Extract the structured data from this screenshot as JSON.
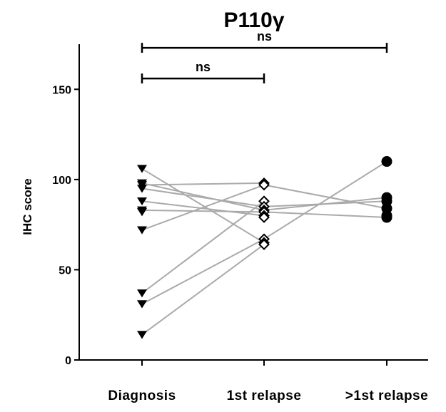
{
  "chart_data": {
    "type": "line",
    "title": "P110γ",
    "xlabel": "",
    "ylabel": "IHC score",
    "categories": [
      "Diagnosis",
      "1st relapse",
      ">1st relapse"
    ],
    "ylim": [
      0,
      175
    ],
    "yticks": [
      0,
      50,
      100,
      150
    ],
    "grid": false,
    "markers": [
      "triangle-down",
      "diamond-open",
      "circle"
    ],
    "line_color": "#aaaaaa",
    "marker_color": "#000000",
    "pairs": [
      {
        "from": [
          0,
          106
        ],
        "to": [
          1,
          65
        ]
      },
      {
        "from": [
          0,
          98
        ],
        "to": [
          1,
          83
        ]
      },
      {
        "from": [
          0,
          97
        ],
        "to": [
          1,
          98
        ]
      },
      {
        "from": [
          0,
          95
        ],
        "to": [
          1,
          85
        ]
      },
      {
        "from": [
          0,
          88
        ],
        "to": [
          1,
          80
        ]
      },
      {
        "from": [
          0,
          83
        ],
        "to": [
          1,
          82
        ]
      },
      {
        "from": [
          0,
          72
        ],
        "to": [
          1,
          97
        ]
      },
      {
        "from": [
          0,
          37
        ],
        "to": [
          1,
          88
        ]
      },
      {
        "from": [
          0,
          31
        ],
        "to": [
          1,
          67
        ]
      },
      {
        "from": [
          0,
          14
        ],
        "to": [
          1,
          64
        ]
      },
      {
        "from": [
          1,
          97
        ],
        "to": [
          2,
          84
        ]
      },
      {
        "from": [
          1,
          85
        ],
        "to": [
          2,
          88
        ]
      },
      {
        "from": [
          1,
          83
        ],
        "to": [
          2,
          90
        ]
      },
      {
        "from": [
          1,
          82
        ],
        "to": [
          2,
          79
        ]
      },
      {
        "from": [
          1,
          67
        ],
        "to": [
          2,
          110
        ]
      }
    ],
    "points": [
      {
        "group": 0,
        "values": [
          106,
          98,
          97,
          95,
          88,
          83,
          82,
          72,
          37,
          31,
          14
        ]
      },
      {
        "group": 1,
        "values": [
          98,
          97,
          88,
          85,
          83,
          82,
          80,
          79,
          67,
          65,
          64
        ]
      },
      {
        "group": 2,
        "values": [
          110,
          90,
          88,
          84,
          80,
          79
        ]
      }
    ],
    "significance": [
      {
        "from": 0,
        "to": 1,
        "label": "ns",
        "y": 156
      },
      {
        "from": 0,
        "to": 2,
        "label": "ns",
        "y": 173
      }
    ]
  }
}
